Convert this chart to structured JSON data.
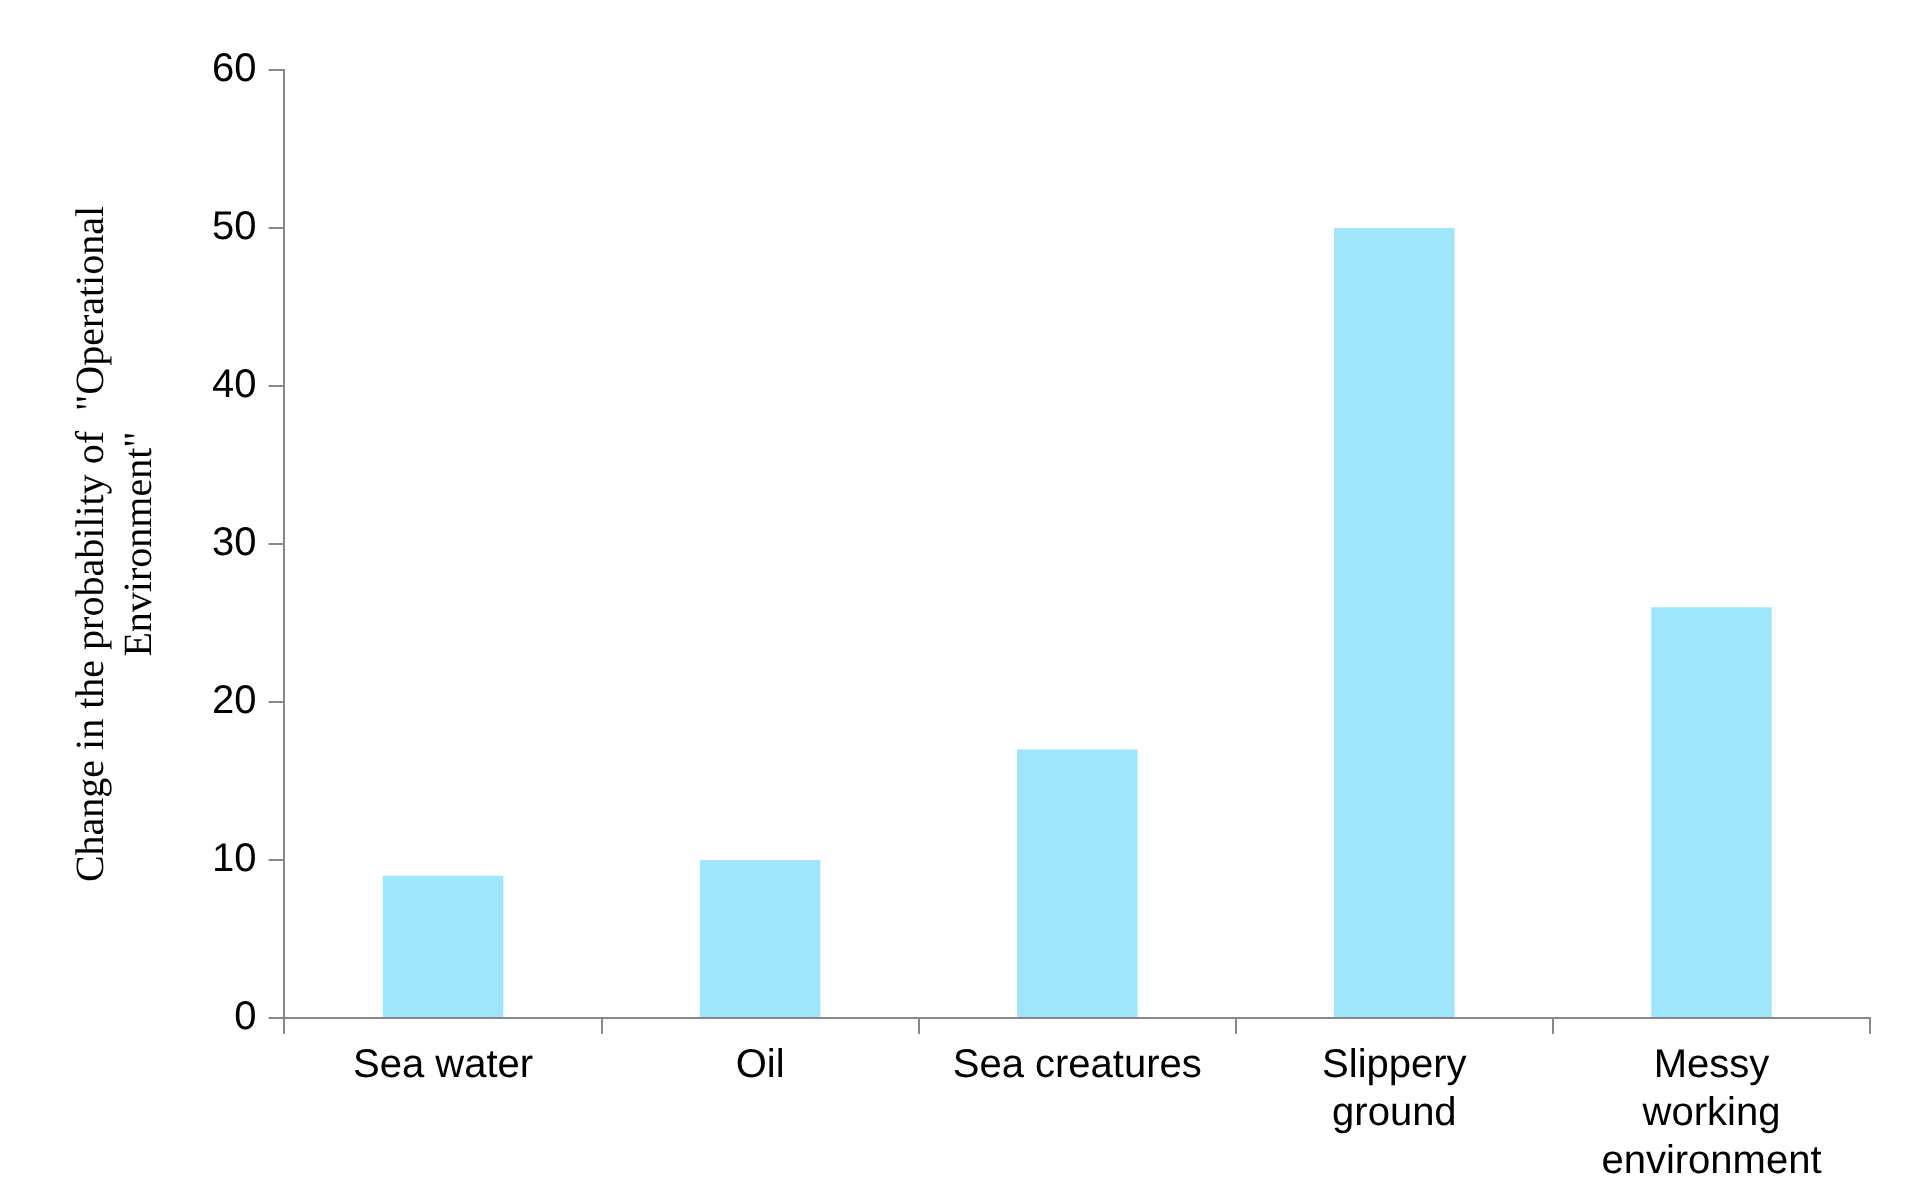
{
  "chart_data": {
    "type": "bar",
    "ylabel": "Change in the probability of  \"Operational Environment\"",
    "categories": [
      "Sea water",
      "Oil",
      "Sea creatures",
      "Slippery ground",
      "Messy working environment"
    ],
    "values": [
      9,
      10,
      17,
      50,
      26
    ],
    "color": "#9ee6fc",
    "ylim": [
      0,
      60
    ],
    "yticks": [
      0,
      10,
      20,
      30,
      40,
      50,
      60
    ],
    "grid": false,
    "legend": false
  }
}
